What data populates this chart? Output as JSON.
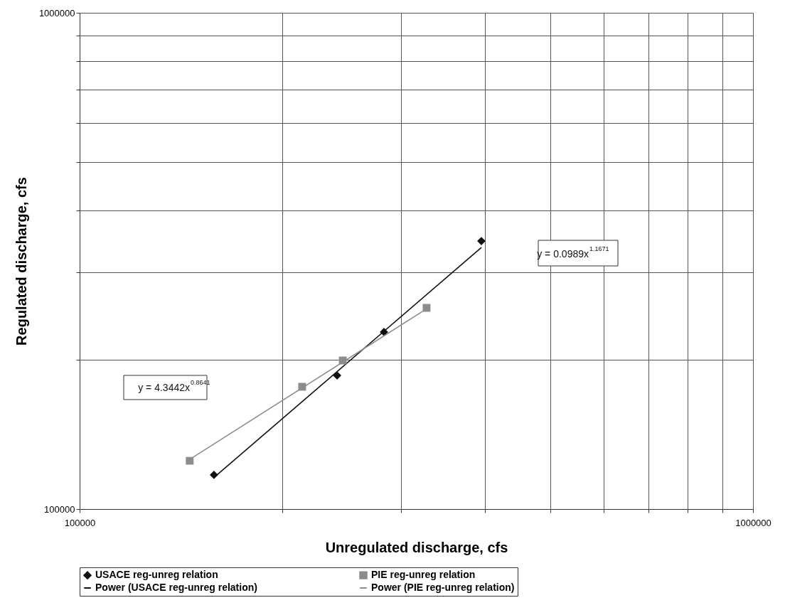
{
  "chart_data": {
    "type": "scatter",
    "xlabel": "Unregulated discharge, cfs",
    "ylabel": "Regulated discharge, cfs",
    "log": "xy",
    "xlim": [
      100000,
      1000000
    ],
    "ylim": [
      100000,
      1000000
    ],
    "xticks": [
      100000,
      {
        "value": 200000,
        "label": null
      },
      {
        "value": 300000,
        "label": null
      },
      {
        "value": 400000,
        "label": null
      },
      {
        "value": 500000,
        "label": null
      },
      {
        "value": 600000,
        "label": null
      },
      {
        "value": 700000,
        "label": null
      },
      {
        "value": 800000,
        "label": null
      },
      {
        "value": 900000,
        "label": null
      },
      1000000
    ],
    "yticks": [
      100000,
      {
        "value": 200000,
        "label": null
      },
      {
        "value": 300000,
        "label": null
      },
      {
        "value": 400000,
        "label": null
      },
      {
        "value": 500000,
        "label": null
      },
      {
        "value": 600000,
        "label": null
      },
      {
        "value": 700000,
        "label": null
      },
      {
        "value": 800000,
        "label": null
      },
      {
        "value": 900000,
        "label": null
      },
      1000000
    ],
    "grid": true,
    "legend": "bottom",
    "series": [
      {
        "name": "USACE reg-unreg relation",
        "marker": "diamond",
        "color": "#111111",
        "x": [
          158300,
          241200,
          283100,
          395000
        ],
        "values": [
          117200,
          185900,
          227400,
          346800
        ]
      },
      {
        "name": "PIE reg-unreg relation",
        "marker": "square",
        "color": "#8c8c8c",
        "x": [
          145700,
          214000,
          245900,
          327500
        ],
        "values": [
          125100,
          176400,
          199300,
          254400
        ]
      },
      {
        "name": "Power (USACE reg-unreg relation)",
        "type": "line",
        "color": "#111111",
        "x": [
          158300,
          395000
        ],
        "values": [
          115800,
          336500
        ]
      },
      {
        "name": "Power (PIE reg-unreg relation)",
        "type": "line",
        "color": "#8c8c8c",
        "x": [
          145700,
          327500
        ],
        "values": [
          125900,
          253200
        ]
      }
    ],
    "annotations": [
      "y = 0.0989x$^{1.1671}$",
      "y = 4.3442x$^{0.8641}$"
    ]
  }
}
